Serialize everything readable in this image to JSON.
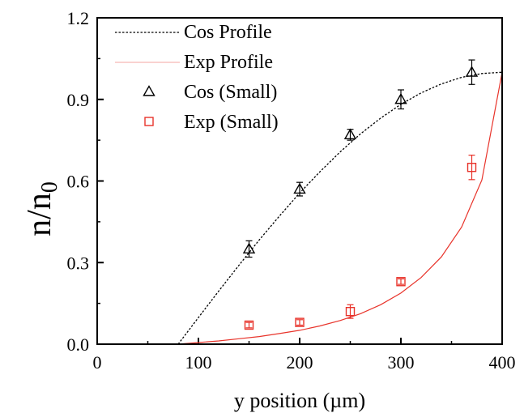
{
  "chart_data": {
    "type": "scatter",
    "title": "",
    "xlabel": "y position (µm)",
    "ylabel": "n/n",
    "ylabel_subscript": "0",
    "xlim": [
      0,
      400
    ],
    "ylim": [
      0,
      1.2
    ],
    "x_ticks": [
      0,
      100,
      200,
      300,
      400
    ],
    "x_tick_labels": [
      "0",
      "100",
      "200",
      "300",
      "400"
    ],
    "y_ticks": [
      0,
      0.3,
      0.6,
      0.9,
      1.2
    ],
    "y_tick_labels": [
      "0.0",
      "0.3",
      "0.6",
      "0.9",
      "1.2"
    ],
    "grid": false,
    "legend_placement": "top-left",
    "series": [
      {
        "name": "Cos Profile",
        "kind": "line",
        "style": "dotted",
        "color": "#000000",
        "x": [
          80,
          100,
          120,
          140,
          160,
          180,
          200,
          220,
          240,
          260,
          280,
          300,
          320,
          340,
          360,
          380,
          400
        ],
        "y": [
          0.0,
          0.098,
          0.195,
          0.29,
          0.383,
          0.471,
          0.556,
          0.634,
          0.707,
          0.773,
          0.831,
          0.882,
          0.924,
          0.957,
          0.981,
          0.995,
          1.0
        ]
      },
      {
        "name": "Exp Profile",
        "kind": "line",
        "style": "solid",
        "color": "#e8332a",
        "x": [
          80,
          100,
          120,
          140,
          160,
          180,
          200,
          220,
          240,
          260,
          280,
          300,
          320,
          340,
          360,
          380,
          400
        ],
        "y": [
          0.0,
          0.006,
          0.012,
          0.02,
          0.028,
          0.039,
          0.051,
          0.067,
          0.087,
          0.112,
          0.145,
          0.188,
          0.245,
          0.321,
          0.431,
          0.604,
          1.0
        ]
      },
      {
        "name": "Cos (Small)",
        "kind": "markers",
        "marker": "triangle",
        "color": "#000000",
        "x": [
          150,
          200,
          250,
          300,
          370
        ],
        "y": [
          0.35,
          0.57,
          0.77,
          0.9,
          1.0
        ],
        "err": [
          0.03,
          0.025,
          0.02,
          0.035,
          0.045
        ]
      },
      {
        "name": "Exp (Small)",
        "kind": "markers",
        "marker": "square",
        "color": "#e8332a",
        "x": [
          150,
          200,
          250,
          300,
          370
        ],
        "y": [
          0.07,
          0.08,
          0.12,
          0.23,
          0.65
        ],
        "err": [
          0.01,
          0.01,
          0.025,
          0.01,
          0.045
        ]
      }
    ]
  }
}
